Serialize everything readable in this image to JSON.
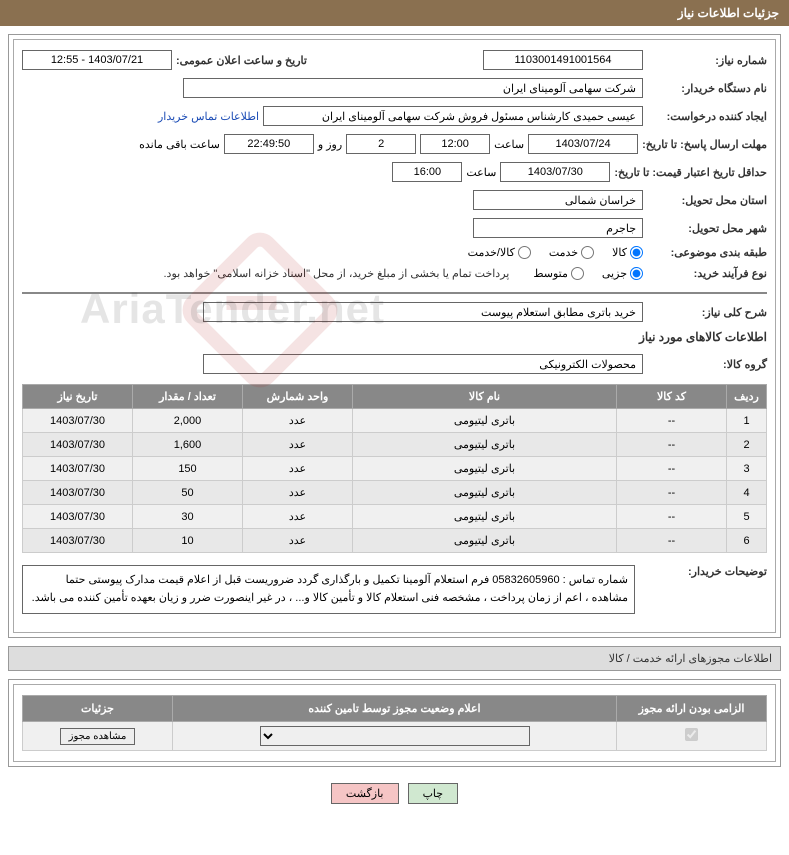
{
  "header": {
    "title": "جزئیات اطلاعات نیاز"
  },
  "fields": {
    "need_number_label": "شماره نیاز:",
    "need_number": "1103001491001564",
    "announce_label": "تاریخ و ساعت اعلان عمومی:",
    "announce_value": "1403/07/21 - 12:55",
    "buyer_org_label": "نام دستگاه خریدار:",
    "buyer_org": "شرکت سهامی آلومینای ایران",
    "requester_label": "ایجاد کننده درخواست:",
    "requester": "عیسی حمیدی کارشناس مسئول فروش شرکت سهامی آلومینای ایران",
    "contact_link": "اطلاعات تماس خریدار",
    "deadline_label": "مهلت ارسال پاسخ: تا تاریخ:",
    "deadline_date": "1403/07/24",
    "time_label": "ساعت",
    "deadline_time": "12:00",
    "days_remaining": "2",
    "days_word": "روز و",
    "countdown": "22:49:50",
    "remaining_text": "ساعت باقی مانده",
    "validity_label": "حداقل تاریخ اعتبار قیمت: تا تاریخ:",
    "validity_date": "1403/07/30",
    "validity_time": "16:00",
    "province_label": "استان محل تحویل:",
    "province": "خراسان شمالی",
    "city_label": "شهر محل تحویل:",
    "city": "جاجرم",
    "category_label": "طبقه بندی موضوعی:",
    "cat_goods": "کالا",
    "cat_service": "خدمت",
    "cat_both": "کالا/خدمت",
    "process_label": "نوع فرآیند خرید:",
    "proc_minor": "جزیی",
    "proc_medium": "متوسط",
    "treasury_note": "پرداخت تمام یا بخشی از مبلغ خرید، از محل \"اسناد خزانه اسلامی\" خواهد بود.",
    "summary_label": "شرح کلی نیاز:",
    "summary": "خرید باتری مطابق استعلام پیوست",
    "goods_section": "اطلاعات کالاهای مورد نیاز",
    "group_label": "گروه کالا:",
    "group_value": "محصولات الکترونیکی",
    "buyer_notes_label": "توضیحات خریدار:",
    "buyer_notes": "شماره تماس : 05832605960 فرم استعلام آلومینا تکمیل و بارگذاری گردد ضروریست قبل از اعلام قیمت مدارک پیوستی حتما مشاهده ، اعم از زمان پرداخت ، مشخصه فنی استعلام کالا و تأمین کالا و... ، در غیر اینصورت ضرر و زیان بعهده تأمین کننده می باشد."
  },
  "table": {
    "headers": {
      "row": "ردیف",
      "code": "کد کالا",
      "name": "نام کالا",
      "unit": "واحد شمارش",
      "qty": "تعداد / مقدار",
      "date": "تاریخ نیاز"
    },
    "rows": [
      {
        "n": "1",
        "code": "--",
        "name": "باتری لیتیومی",
        "unit": "عدد",
        "qty": "2,000",
        "date": "1403/07/30"
      },
      {
        "n": "2",
        "code": "--",
        "name": "باتری لیتیومی",
        "unit": "عدد",
        "qty": "1,600",
        "date": "1403/07/30"
      },
      {
        "n": "3",
        "code": "--",
        "name": "باتری لیتیومی",
        "unit": "عدد",
        "qty": "150",
        "date": "1403/07/30"
      },
      {
        "n": "4",
        "code": "--",
        "name": "باتری لیتیومی",
        "unit": "عدد",
        "qty": "50",
        "date": "1403/07/30"
      },
      {
        "n": "5",
        "code": "--",
        "name": "باتری لیتیومی",
        "unit": "عدد",
        "qty": "30",
        "date": "1403/07/30"
      },
      {
        "n": "6",
        "code": "--",
        "name": "باتری لیتیومی",
        "unit": "عدد",
        "qty": "10",
        "date": "1403/07/30"
      }
    ]
  },
  "license": {
    "section_title": "اطلاعات مجوزهای ارائه خدمت / کالا",
    "col_mandatory": "الزامی بودن ارائه مجوز",
    "col_status": "اعلام وضعیت مجوز توسط تامین کننده",
    "col_details": "جزئیات",
    "view_btn": "مشاهده مجوز"
  },
  "buttons": {
    "print": "چاپ",
    "back": "بازگشت"
  },
  "watermark": "AriaTender.net",
  "colors": {
    "header_bg": "#8a7050",
    "th_bg": "#888888",
    "row_bg": "#f0f0f0",
    "link": "#1a4bb5"
  }
}
